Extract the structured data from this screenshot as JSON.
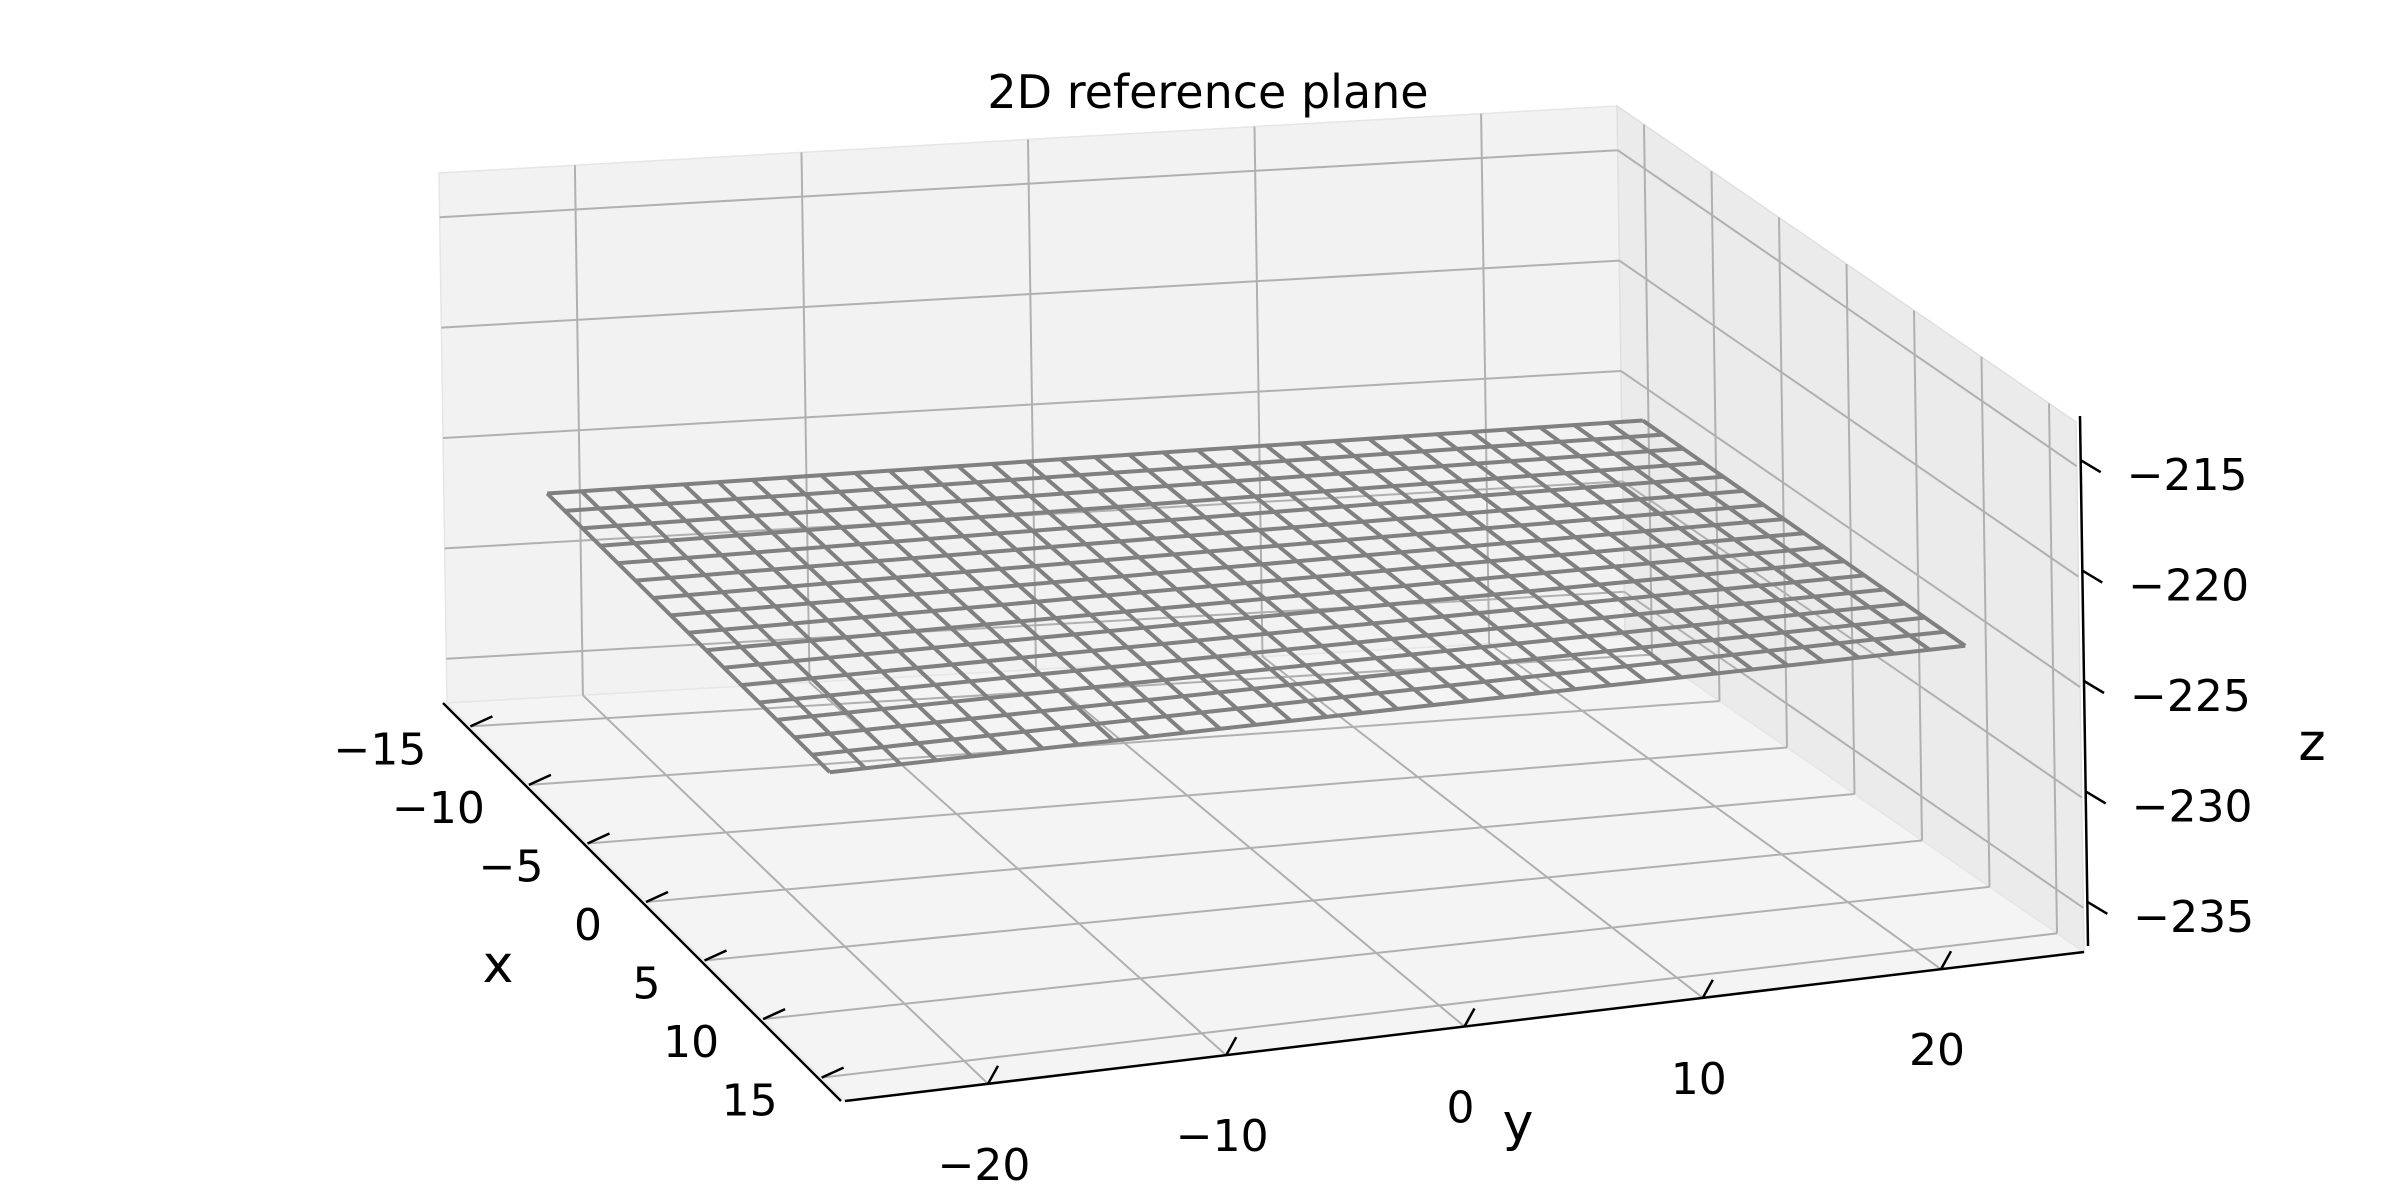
{
  "chart_data": {
    "type": "wireframe_3d",
    "title": "2D reference plane",
    "xlabel": "x",
    "ylabel": "y",
    "zlabel": "z",
    "xlim": [
      -17,
      17
    ],
    "ylim": [
      -26,
      26
    ],
    "zlim": [
      -237,
      -213
    ],
    "xticks": [
      "−15",
      "−10",
      "−5",
      "0",
      "5",
      "10",
      "15"
    ],
    "yticks": [
      "−20",
      "−10",
      "0",
      "10",
      "20"
    ],
    "zticks": [
      "−215",
      "−220",
      "−225",
      "−230",
      "−235"
    ],
    "grid": true,
    "surface": {
      "x_range": [
        -12,
        12
      ],
      "y_range": [
        -24,
        24
      ],
      "z": -225,
      "x_lines": 17,
      "y_lines": 33,
      "color": "#808080"
    },
    "pane_color": "#f2f2f2",
    "grid_color": "#b0b0b0"
  }
}
